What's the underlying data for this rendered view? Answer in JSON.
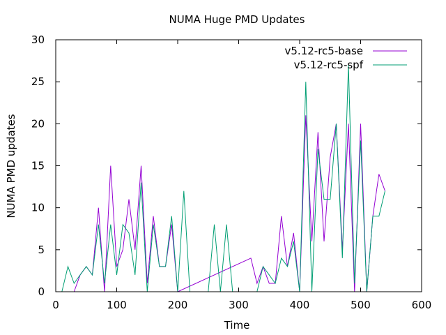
{
  "chart_data": {
    "type": "line",
    "title": "NUMA Huge PMD Updates",
    "xlabel": "Time",
    "ylabel": "NUMA PMD updates",
    "xlim": [
      0,
      600
    ],
    "ylim": [
      0,
      30
    ],
    "xticks": [
      0,
      100,
      200,
      300,
      400,
      500,
      600
    ],
    "yticks": [
      0,
      5,
      10,
      15,
      20,
      25,
      30
    ],
    "grid": false,
    "legend_position": "top-right",
    "series": [
      {
        "name": "v5.12-rc5-base",
        "color": "#9400d3",
        "x": [
          30,
          40,
          50,
          60,
          70,
          80,
          90,
          100,
          110,
          120,
          130,
          140,
          150,
          160,
          170,
          180,
          190,
          200,
          320,
          330,
          340,
          350,
          360,
          370,
          380,
          390,
          400,
          410,
          420,
          430,
          440,
          450,
          460,
          470,
          480,
          490,
          500,
          510,
          520,
          530,
          540
        ],
        "values": [
          0,
          2,
          3,
          2,
          10,
          0,
          15,
          3,
          5,
          11,
          5,
          15,
          1,
          9,
          3,
          3,
          8,
          0,
          4,
          1,
          3,
          1,
          1,
          9,
          3,
          7,
          0,
          21,
          6,
          19,
          6,
          16,
          20,
          5,
          20,
          0,
          20,
          0,
          9,
          14,
          12
        ]
      },
      {
        "name": "v5.12-rc5-spf",
        "color": "#009e73",
        "x": [
          10,
          20,
          30,
          40,
          50,
          60,
          70,
          80,
          90,
          100,
          110,
          120,
          130,
          140,
          150,
          160,
          170,
          180,
          190,
          200,
          210,
          220,
          250,
          260,
          270,
          280,
          290,
          310,
          320,
          330,
          340,
          350,
          360,
          370,
          380,
          390,
          400,
          410,
          420,
          430,
          440,
          450,
          460,
          470,
          480,
          490,
          500,
          510,
          520,
          530,
          540
        ],
        "values": [
          0,
          3,
          1,
          2,
          3,
          2,
          8,
          1,
          8,
          2,
          8,
          7,
          2,
          13,
          0,
          8,
          3,
          3,
          9,
          0,
          12,
          0,
          0,
          8,
          0,
          8,
          0,
          0,
          0,
          0,
          3,
          2,
          1,
          4,
          3,
          6,
          0,
          25,
          0,
          17,
          11,
          11,
          20,
          4,
          27,
          1,
          18,
          0,
          9,
          9,
          12
        ]
      }
    ]
  }
}
